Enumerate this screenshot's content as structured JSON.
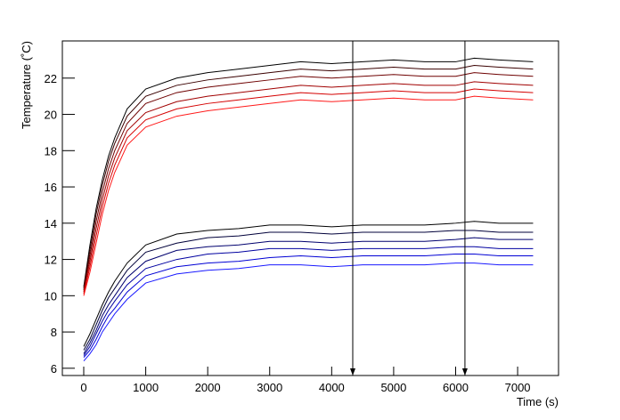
{
  "chart_data": {
    "type": "line",
    "x_label": "Time (s)",
    "y_label": "Temperature (˚C)",
    "x": [
      0,
      100,
      200,
      300,
      400,
      500,
      700,
      1000,
      1500,
      2000,
      2500,
      3000,
      3500,
      4000,
      4500,
      5000,
      5500,
      6000,
      6300,
      6700,
      7250
    ],
    "series": [
      {
        "color": "#000000",
        "values": [
          10.5,
          12.8,
          14.8,
          16.4,
          17.7,
          18.7,
          20.3,
          21.4,
          22.0,
          22.3,
          22.5,
          22.7,
          22.9,
          22.8,
          22.9,
          23.0,
          22.9,
          22.9,
          23.1,
          23.0,
          22.9
        ]
      },
      {
        "color": "#3a0000",
        "values": [
          10.4,
          12.5,
          14.5,
          16.1,
          17.4,
          18.4,
          19.9,
          21.0,
          21.6,
          21.9,
          22.1,
          22.3,
          22.5,
          22.4,
          22.5,
          22.6,
          22.5,
          22.5,
          22.7,
          22.6,
          22.5
        ]
      },
      {
        "color": "#6e0000",
        "values": [
          10.3,
          12.2,
          14.1,
          15.7,
          17.0,
          18.0,
          19.5,
          20.6,
          21.2,
          21.5,
          21.7,
          21.9,
          22.1,
          22.0,
          22.1,
          22.2,
          22.1,
          22.1,
          22.3,
          22.2,
          22.1
        ]
      },
      {
        "color": "#a00000",
        "values": [
          10.2,
          11.9,
          13.7,
          15.3,
          16.6,
          17.6,
          19.1,
          20.1,
          20.7,
          21.0,
          21.2,
          21.4,
          21.6,
          21.5,
          21.6,
          21.7,
          21.6,
          21.6,
          21.8,
          21.7,
          21.6
        ]
      },
      {
        "color": "#d40000",
        "values": [
          10.1,
          11.6,
          13.3,
          14.9,
          16.2,
          17.2,
          18.7,
          19.7,
          20.3,
          20.6,
          20.8,
          21.0,
          21.2,
          21.1,
          21.2,
          21.3,
          21.2,
          21.2,
          21.4,
          21.3,
          21.2
        ]
      },
      {
        "color": "#ff1a1a",
        "values": [
          10.0,
          11.3,
          12.9,
          14.5,
          15.8,
          16.8,
          18.3,
          19.3,
          19.9,
          20.2,
          20.4,
          20.6,
          20.8,
          20.7,
          20.8,
          20.9,
          20.8,
          20.8,
          21.0,
          20.9,
          20.8
        ]
      },
      {
        "color": "#000000",
        "values": [
          7.2,
          7.9,
          8.7,
          9.5,
          10.2,
          10.8,
          11.8,
          12.8,
          13.4,
          13.6,
          13.7,
          13.9,
          13.9,
          13.8,
          13.9,
          13.9,
          13.9,
          14.0,
          14.1,
          14.0,
          14.0
        ]
      },
      {
        "color": "#00003a",
        "values": [
          7.0,
          7.6,
          8.4,
          9.2,
          9.9,
          10.4,
          11.4,
          12.4,
          12.9,
          13.2,
          13.3,
          13.5,
          13.5,
          13.4,
          13.5,
          13.5,
          13.5,
          13.6,
          13.6,
          13.5,
          13.5
        ]
      },
      {
        "color": "#00006e",
        "values": [
          6.8,
          7.4,
          8.1,
          8.9,
          9.5,
          10.0,
          11.0,
          11.9,
          12.5,
          12.7,
          12.8,
          13.0,
          13.0,
          12.9,
          13.0,
          13.0,
          13.0,
          13.1,
          13.2,
          13.1,
          13.1
        ]
      },
      {
        "color": "#0000a0",
        "values": [
          6.7,
          7.2,
          7.9,
          8.6,
          9.2,
          9.7,
          10.6,
          11.5,
          12.0,
          12.3,
          12.4,
          12.6,
          12.6,
          12.5,
          12.6,
          12.6,
          12.6,
          12.7,
          12.7,
          12.6,
          12.6
        ]
      },
      {
        "color": "#0000d4",
        "values": [
          6.6,
          7.0,
          7.6,
          8.3,
          8.9,
          9.3,
          10.2,
          11.1,
          11.6,
          11.8,
          11.9,
          12.1,
          12.2,
          12.1,
          12.2,
          12.2,
          12.2,
          12.3,
          12.3,
          12.2,
          12.2
        ]
      },
      {
        "color": "#1a1aff",
        "values": [
          6.4,
          6.8,
          7.3,
          8.0,
          8.5,
          9.0,
          9.8,
          10.7,
          11.2,
          11.4,
          11.5,
          11.7,
          11.7,
          11.6,
          11.7,
          11.7,
          11.7,
          11.8,
          11.8,
          11.7,
          11.7
        ]
      }
    ],
    "arrows_x": [
      4340,
      6150
    ],
    "xlim": [
      -345,
      7660
    ],
    "ylim": [
      5.6,
      24.05
    ],
    "xticks": [
      0,
      1000,
      2000,
      3000,
      4000,
      5000,
      6000,
      7000
    ],
    "yticks": [
      6,
      8,
      10,
      12,
      14,
      16,
      18,
      20,
      22
    ]
  }
}
